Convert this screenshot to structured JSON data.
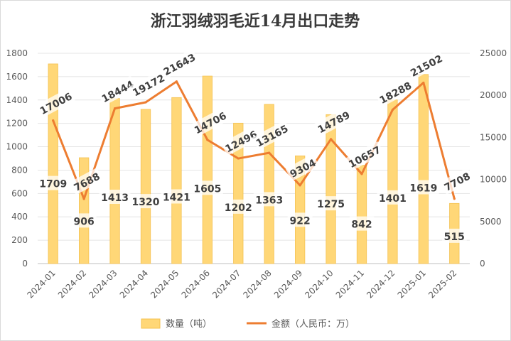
{
  "chart_data": {
    "type": "bar+line",
    "title": "浙江羽绒羽毛近14月出口走势",
    "categories": [
      "2024-01",
      "2024-02",
      "2024-03",
      "2024-04",
      "2024-05",
      "2024-06",
      "2024-07",
      "2024-08",
      "2024-09",
      "2024-10",
      "2024-11",
      "2024-12",
      "2025-01",
      "2025-02"
    ],
    "series": [
      {
        "name": "数量（吨）",
        "type": "bar",
        "axis": "left",
        "color": "#FFD777",
        "values": [
          1709,
          906,
          1413,
          1320,
          1421,
          1605,
          1202,
          1363,
          922,
          1275,
          842,
          1401,
          1619,
          515
        ]
      },
      {
        "name": "金额（人民币：万）",
        "type": "line",
        "axis": "right",
        "color": "#ED7D31",
        "values": [
          17006,
          7688,
          18444,
          19172,
          21643,
          14706,
          12496,
          13165,
          9304,
          14789,
          10657,
          18288,
          21502,
          7708
        ]
      }
    ],
    "y_left": {
      "range": [
        0,
        1800
      ],
      "ticks": [
        "0",
        "200",
        "400",
        "600",
        "800",
        "1000",
        "1200",
        "1400",
        "1600",
        "1800"
      ]
    },
    "y_right": {
      "range": [
        0,
        25000
      ],
      "ticks": [
        "0",
        "5000",
        "10000",
        "15000",
        "20000",
        "25000"
      ]
    },
    "grid": true,
    "legend": "bottom"
  }
}
